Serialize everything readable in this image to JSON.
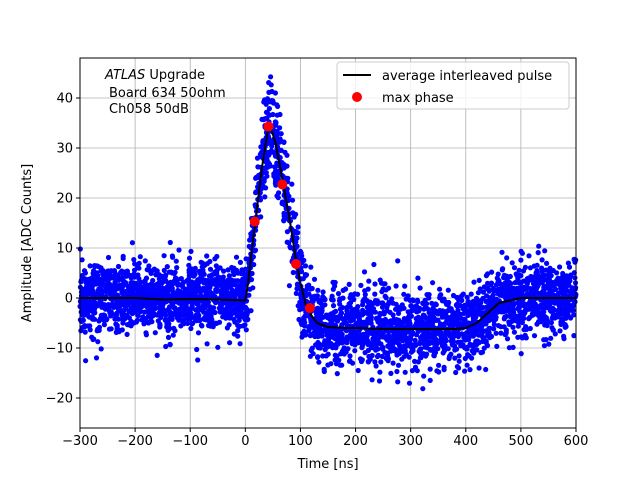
{
  "chart_data": {
    "type": "scatter",
    "xlabel": "Time [ns]",
    "ylabel": "Amplitude [ADC Counts]",
    "xlim": [
      -300,
      600
    ],
    "ylim": [
      -26,
      48
    ],
    "xticks": [
      -300,
      -200,
      -100,
      0,
      100,
      200,
      300,
      400,
      500,
      600
    ],
    "yticks": [
      -20,
      -10,
      0,
      10,
      20,
      30,
      40
    ],
    "xtick_labels": [
      "−300",
      "−200",
      "−100",
      "0",
      "100",
      "200",
      "300",
      "400",
      "500",
      "600"
    ],
    "ytick_labels": [
      "−20",
      "−10",
      "0",
      "10",
      "20",
      "30",
      "40"
    ],
    "grid": true,
    "annotation": {
      "line1_italic": "ATLAS",
      "line1_rest": " Upgrade",
      "line2": "Board 634 50ohm",
      "line3": "Ch058 50dB"
    },
    "legend": {
      "placement": "top-right",
      "entries": [
        {
          "label": "average interleaved pulse",
          "kind": "line",
          "color": "#000000"
        },
        {
          "label": "max phase",
          "kind": "marker",
          "color": "#ff0000"
        }
      ]
    },
    "series": [
      {
        "name": "average interleaved pulse",
        "kind": "line",
        "color": "#000000",
        "x": [
          -300,
          -250,
          -200,
          -150,
          -100,
          -50,
          0,
          5,
          10,
          20,
          30,
          40,
          45,
          55,
          65,
          70,
          80,
          90,
          100,
          110,
          120,
          130,
          150,
          180,
          200,
          250,
          300,
          350,
          380,
          400,
          420,
          440,
          460,
          480,
          500,
          550,
          600
        ],
        "y": [
          0,
          0,
          0,
          -0.3,
          -0.2,
          -0.3,
          -0.5,
          3,
          8,
          17,
          26,
          33,
          34.5,
          31,
          25,
          22,
          16,
          9,
          3,
          -1.5,
          -3.5,
          -5,
          -5.8,
          -6,
          -6,
          -6.2,
          -6.2,
          -6.2,
          -6.2,
          -6,
          -5,
          -3,
          -1,
          -0.5,
          0,
          0,
          0
        ]
      },
      {
        "name": "max phase",
        "kind": "marker",
        "color": "#ff0000",
        "x": [
          17,
          42,
          67,
          92,
          117
        ],
        "y": [
          15.3,
          34.3,
          22.7,
          6.8,
          -2.0
        ]
      }
    ],
    "scatter_cloud": {
      "color": "#0000ff",
      "description_free": true,
      "baseline_sigma": 3.6
    }
  }
}
